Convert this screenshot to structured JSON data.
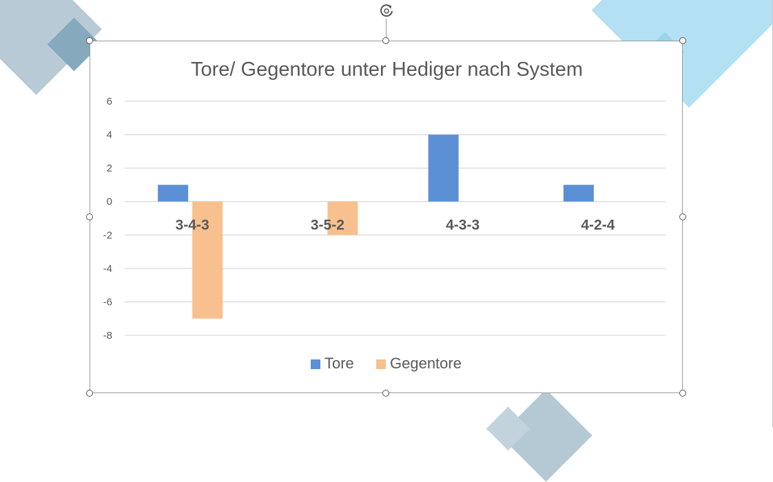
{
  "chart_data": {
    "type": "bar",
    "title": "Tore/ Gegentore unter Hediger nach System",
    "categories": [
      "3-4-3",
      "3-5-2",
      "4-3-3",
      "4-2-4"
    ],
    "series": [
      {
        "name": "Tore",
        "values": [
          1,
          0,
          4,
          1
        ],
        "color": "#5B8FD6"
      },
      {
        "name": "Gegentore",
        "values": [
          -7,
          -2,
          0,
          0
        ],
        "color": "#F7C08E"
      }
    ],
    "y_ticks": [
      6,
      4,
      2,
      0,
      -2,
      -4,
      -6,
      -8
    ],
    "ylim": [
      -8,
      6
    ],
    "grid": true,
    "legend_position": "bottom"
  },
  "colors": {
    "decoration_blue_gray": "#9DB8C9",
    "decoration_light_blue": "#A8DAEE",
    "gridline": "#D9D9D9",
    "text_gray": "#595959"
  },
  "icons": {
    "rotate_handle": "rotate-icon"
  }
}
